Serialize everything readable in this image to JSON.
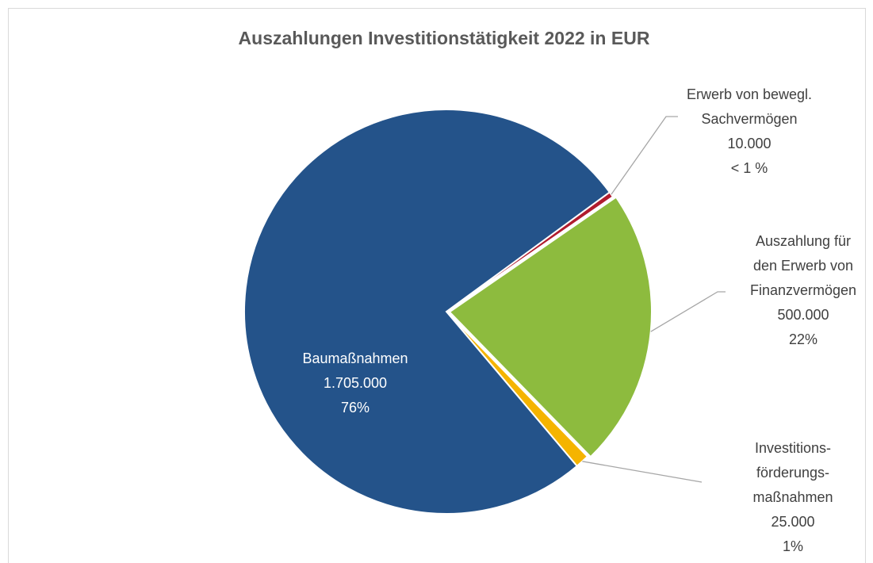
{
  "chart_data": {
    "type": "pie",
    "title": "Auszahlungen Investitionstätigkeit 2022 in EUR",
    "categories": [
      [
        "Erwerb von bewegl.",
        "Sachvermögen"
      ],
      [
        "Auszahlung für",
        "den Erwerb von",
        "Finanzvermögen"
      ],
      [
        "Investitions-",
        "förderungs-",
        "maßnahmen"
      ],
      [
        "Baumaßnahmen"
      ]
    ],
    "values": [
      10000,
      500000,
      25000,
      1705000
    ],
    "value_labels": [
      "10.000",
      "500.000",
      "25.000",
      "1.705.000"
    ],
    "percent_labels": [
      "< 1 %",
      "22%",
      "1%",
      "76%"
    ],
    "colors": [
      "#b01c2e",
      "#8dbb3e",
      "#f5b400",
      "#24538a"
    ]
  }
}
